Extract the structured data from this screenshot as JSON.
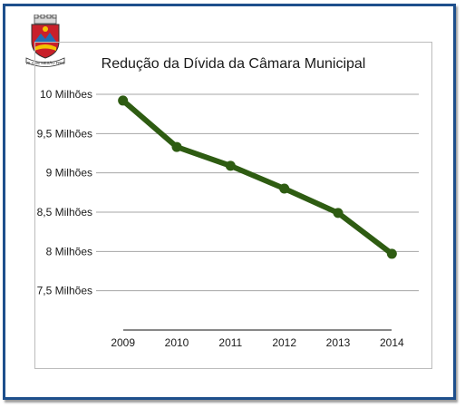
{
  "chart_data": {
    "type": "line",
    "title": "Redução da Dívida da Câmara Municipal",
    "categories": [
      "2009",
      "2010",
      "2011",
      "2012",
      "2013",
      "2014"
    ],
    "series": [
      {
        "values": [
          9.92,
          9.33,
          9.09,
          8.8,
          8.49,
          7.97
        ]
      }
    ],
    "y_tick_labels": [
      "10 Milhões",
      "9,5 Milhões",
      "9 Milhões",
      "8,5 Milhões",
      "8 Milhões",
      "7,5 Milhões"
    ],
    "y_tick_values": [
      10,
      9.5,
      9,
      8.5,
      8,
      7.5
    ],
    "ylim": [
      7,
      10
    ],
    "grid": true,
    "legend": "none",
    "line_color": "#2e5c12"
  },
  "logo": {
    "caption": "VILA DE MESÃO FRIO"
  }
}
